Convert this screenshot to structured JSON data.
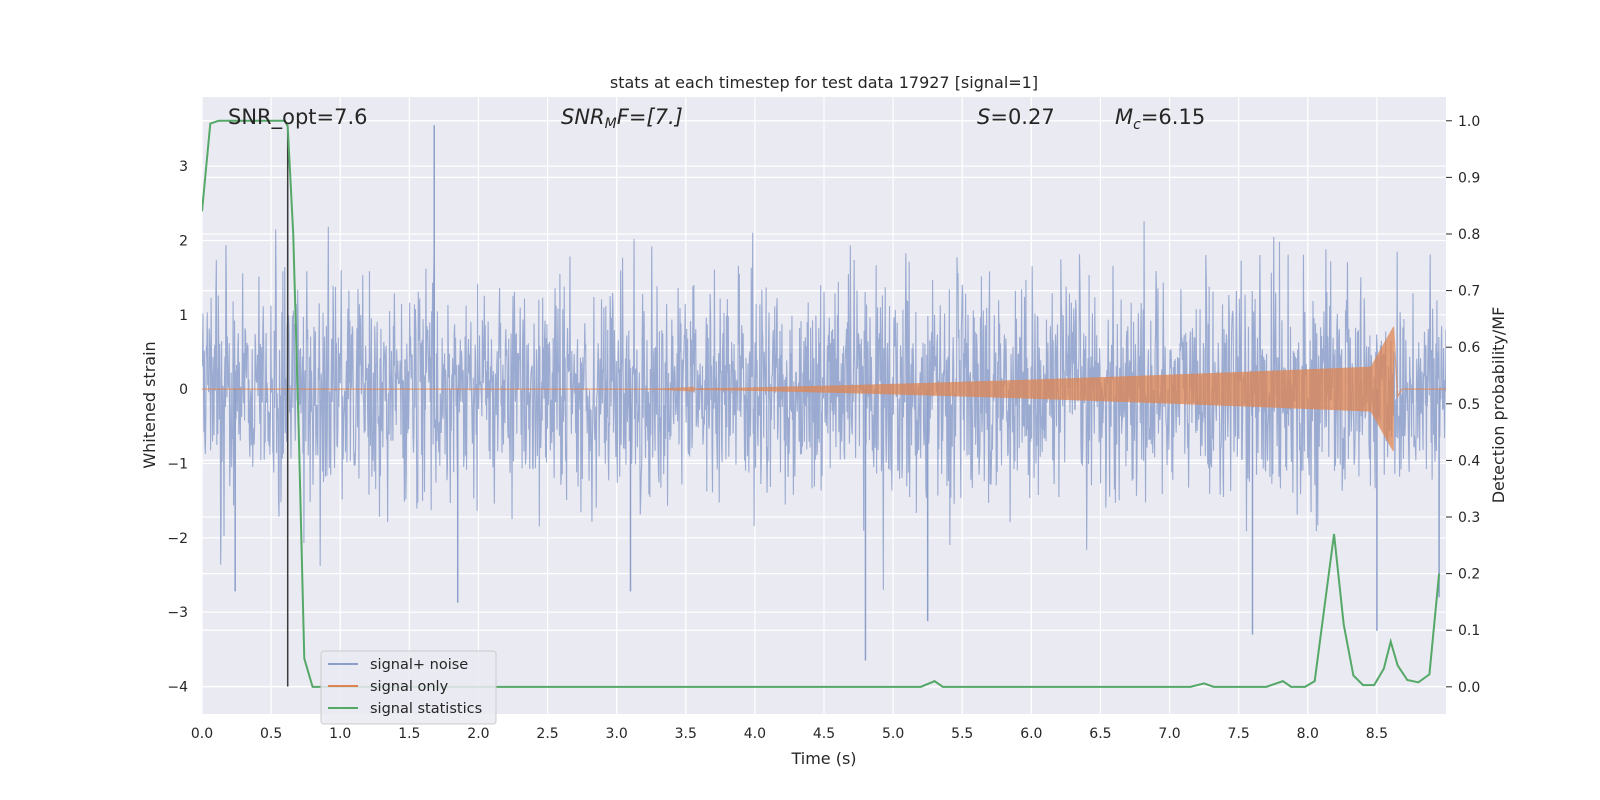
{
  "chart_data": {
    "type": "line",
    "title": "stats at each timestep for test data 17927 [signal=1]",
    "xlabel": "Time (s)",
    "ylabel_left": "Whitened strain",
    "ylabel_right": "Detection probability/MF",
    "xlim": [
      0.0,
      9.0
    ],
    "ylim_left": [
      -4.37,
      3.93
    ],
    "ylim_right": [
      -0.048,
      1.042
    ],
    "x_ticks": [
      0.0,
      0.5,
      1.0,
      1.5,
      2.0,
      2.5,
      3.0,
      3.5,
      4.0,
      4.5,
      5.0,
      5.5,
      6.0,
      6.5,
      7.0,
      7.5,
      8.0,
      8.5
    ],
    "x_tick_labels": [
      "0.0",
      "0.5",
      "1.0",
      "1.5",
      "2.0",
      "2.5",
      "3.0",
      "3.5",
      "4.0",
      "4.5",
      "5.0",
      "5.5",
      "6.0",
      "6.5",
      "7.0",
      "7.5",
      "8.0",
      "8.5"
    ],
    "y_ticks_left": [
      -4,
      -3,
      -2,
      -1,
      0,
      1,
      2,
      3
    ],
    "y_tick_labels_left": [
      "−4",
      "−3",
      "−2",
      "−1",
      "0",
      "1",
      "2",
      "3"
    ],
    "y_ticks_right": [
      0.0,
      0.1,
      0.2,
      0.3,
      0.4,
      0.5,
      0.6,
      0.7,
      0.8,
      0.9,
      1.0
    ],
    "y_tick_labels_right": [
      "0.0",
      "0.1",
      "0.2",
      "0.3",
      "0.4",
      "0.5",
      "0.6",
      "0.7",
      "0.8",
      "0.9",
      "1.0"
    ],
    "grid": true,
    "legend_position": "lower-left",
    "annotations": {
      "snr_opt": "SNR_opt=7.6",
      "snr_mf_main": "SNR",
      "snr_mf_sub": "M",
      "snr_mf_rest": "F=[7.]",
      "s_main": "S",
      "s_rest": "=0.27",
      "mc_main": "M",
      "mc_sub": "c",
      "mc_rest": "=6.15"
    },
    "marker_line_x": 0.62,
    "series": [
      {
        "name": "signal+ noise",
        "axis": "left",
        "color": "#8c9fca",
        "kind": "noise",
        "x_range": [
          0.0,
          9.0
        ],
        "typical_amplitude": 1.7,
        "notable_peaks": [
          {
            "x": 1.68,
            "y": 3.55
          },
          {
            "x": 0.62,
            "y": 2.75
          },
          {
            "x": 0.24,
            "y": -2.72
          },
          {
            "x": 1.85,
            "y": -2.87
          },
          {
            "x": 3.1,
            "y": -2.72
          },
          {
            "x": 4.8,
            "y": -3.65
          },
          {
            "x": 5.25,
            "y": -3.12
          },
          {
            "x": 7.6,
            "y": -3.3
          },
          {
            "x": 8.5,
            "y": -3.25
          },
          {
            "x": 8.95,
            "y": -2.8
          }
        ]
      },
      {
        "name": "signal only",
        "axis": "left",
        "color": "#dd8452",
        "kind": "chirp",
        "t_start": 3.2,
        "t_merge": 8.62,
        "peak_amplitude": 0.84,
        "pre_merge_amplitude": 0.35
      },
      {
        "name": "signal statistics",
        "axis": "right",
        "color": "#55a868",
        "kind": "line",
        "x": [
          0.0,
          0.06,
          0.12,
          0.6,
          0.62,
          0.66,
          0.7,
          0.74,
          0.8,
          5.2,
          5.3,
          5.36,
          7.15,
          7.25,
          7.32,
          7.7,
          7.82,
          7.88,
          7.98,
          8.05,
          8.19,
          8.26,
          8.33,
          8.4,
          8.48,
          8.55,
          8.6,
          8.65,
          8.72,
          8.8,
          8.88,
          8.95
        ],
        "y": [
          0.84,
          0.995,
          1.0,
          1.0,
          0.99,
          0.8,
          0.45,
          0.05,
          0.0,
          0.0,
          0.01,
          0.0,
          0.0,
          0.006,
          0.0,
          0.0,
          0.01,
          0.0,
          0.0,
          0.01,
          0.27,
          0.11,
          0.02,
          0.003,
          0.003,
          0.032,
          0.08,
          0.038,
          0.012,
          0.008,
          0.022,
          0.2
        ]
      }
    ]
  }
}
